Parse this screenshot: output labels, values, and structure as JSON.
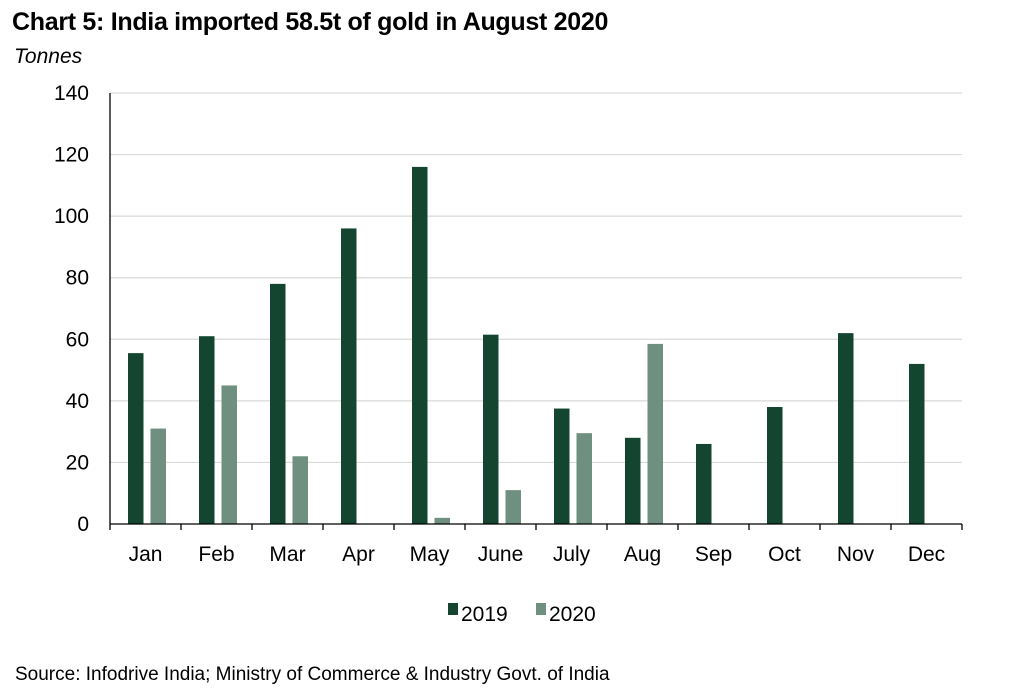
{
  "chart_data": {
    "type": "bar",
    "title": "Chart 5: India imported 58.5t of gold in August 2020",
    "ylabel": "Tonnes",
    "xlabel": "",
    "ylim": [
      0,
      140
    ],
    "yticks": [
      0,
      20,
      40,
      60,
      80,
      100,
      120,
      140
    ],
    "grid": true,
    "legend_position": "bottom-center",
    "categories": [
      "Jan",
      "Feb",
      "Mar",
      "Apr",
      "May",
      "June",
      "July",
      "Aug",
      "Sep",
      "Oct",
      "Nov",
      "Dec"
    ],
    "series": [
      {
        "name": "2019",
        "color": "#134531",
        "values": [
          55.5,
          61,
          78,
          96,
          116,
          61.5,
          37.5,
          28,
          26,
          38,
          62,
          52
        ]
      },
      {
        "name": "2020",
        "color": "#6f8f80",
        "values": [
          31,
          45,
          22,
          null,
          2,
          11,
          29.5,
          58.5,
          null,
          null,
          null,
          null
        ]
      }
    ],
    "source": "Source: Infodrive India; Ministry of Commerce & Industry Govt. of India"
  }
}
